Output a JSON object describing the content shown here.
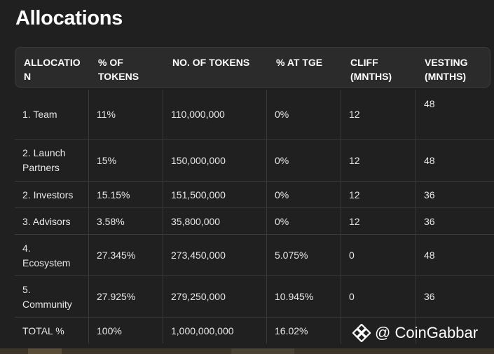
{
  "title": "Allocations",
  "columns": [
    "ALLOCATIO\nN",
    "% OF\nTOKENS",
    "NO. OF TOKENS",
    "% AT TGE",
    "CLIFF\n(MNTHS)",
    "VESTING\n(MNTHS)"
  ],
  "rows": [
    [
      "1. Team",
      "11%",
      "110,000,000",
      "0%",
      "12",
      "48"
    ],
    [
      "2. Launch\nPartners",
      "15%",
      "150,000,000",
      "0%",
      "12",
      "48"
    ],
    [
      "2. Investors",
      "15.15%",
      "151,500,000",
      "0%",
      "12",
      "36"
    ],
    [
      "3. Advisors",
      "3.58%",
      "35,800,000",
      "0%",
      "12",
      "36"
    ],
    [
      "4.\nEcosystem",
      "27.345%",
      "273,450,000",
      "5.075%",
      "0",
      "48"
    ],
    [
      "5.\nCommunity",
      "27.925%",
      "279,250,000",
      "10.945%",
      "0",
      "36"
    ],
    [
      "TOTAL %",
      "100%",
      "1,000,000,000",
      "16.02%",
      "",
      ""
    ]
  ],
  "watermark": "@ CoinGabbar"
}
